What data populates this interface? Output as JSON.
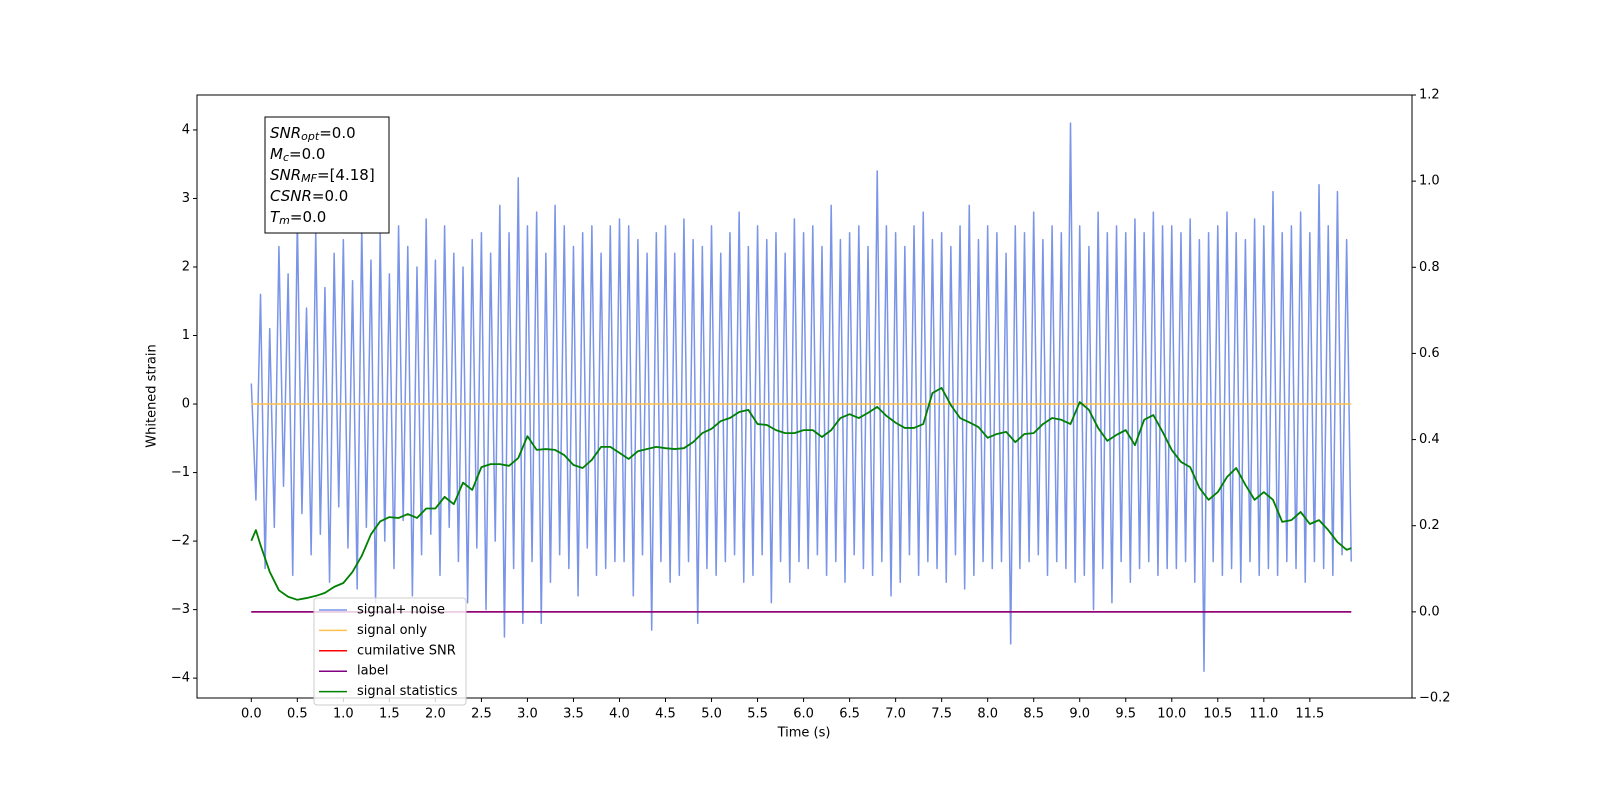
{
  "chart_data": {
    "type": "line",
    "xlabel": "Time (s)",
    "ylabel": "Whitened strain",
    "xlim": [
      -0.59,
      12.61
    ],
    "ylim": [
      -4.29,
      4.51
    ],
    "y2lim": [
      -0.2,
      1.2
    ],
    "xticks": [
      {
        "value": 0,
        "label": "0.0"
      },
      0.5,
      {
        "value": 1,
        "label": "1.0"
      },
      1.5,
      {
        "value": 2,
        "label": "2.0"
      },
      2.5,
      {
        "value": 3,
        "label": "3.0"
      },
      3.5,
      {
        "value": 4,
        "label": "4.0"
      },
      4.5,
      {
        "value": 5,
        "label": "5.0"
      },
      5.5,
      {
        "value": 6,
        "label": "6.0"
      },
      6.5,
      {
        "value": 7,
        "label": "7.0"
      },
      7.5,
      {
        "value": 8,
        "label": "8.0"
      },
      8.5,
      {
        "value": 9,
        "label": "9.0"
      },
      9.5,
      {
        "value": 10,
        "label": "10.0"
      },
      10.5,
      {
        "value": 11,
        "label": "11.0"
      },
      11.5
    ],
    "yticks": [
      {
        "value": -4,
        "label": "−4"
      },
      {
        "value": -3,
        "label": "−3"
      },
      {
        "value": -2,
        "label": "−2"
      },
      {
        "value": -1,
        "label": "−1"
      },
      0,
      1,
      2,
      3,
      4
    ],
    "y2ticks": [
      {
        "value": -0.2,
        "label": "−0.2"
      },
      {
        "value": 0,
        "label": "0.0"
      },
      0.2,
      0.4,
      0.6,
      0.8,
      {
        "value": 1,
        "label": "1.0"
      },
      1.2
    ],
    "grid": false,
    "legend": "lower left",
    "annotation_lines": [
      {
        "main": "SNR",
        "sub": "opt",
        "text": "=0.0"
      },
      {
        "main": "M",
        "sub": "c",
        "text": "=0.0"
      },
      {
        "main": "SNR",
        "sub": "MF",
        "text": "=[4.18]"
      },
      {
        "main": "CSNR",
        "sub": null,
        "text": "=0.0"
      },
      {
        "main": "T",
        "sub": "m",
        "text": "=0.0"
      }
    ],
    "series": [
      {
        "name": "signal+ noise",
        "color": "#7a94e8",
        "axis": "y",
        "x": [
          0,
          0.05,
          0.1,
          0.15,
          0.2,
          0.25,
          0.3,
          0.35,
          0.4,
          0.45,
          0.5,
          0.55,
          0.6,
          0.65,
          0.7,
          0.75,
          0.8,
          0.85,
          0.9,
          0.95,
          1,
          1.05,
          1.1,
          1.15,
          1.2,
          1.25,
          1.3,
          1.35,
          1.4,
          1.45,
          1.5,
          1.55,
          1.6,
          1.65,
          1.7,
          1.75,
          1.8,
          1.85,
          1.9,
          1.95,
          2,
          2.05,
          2.1,
          2.15,
          2.2,
          2.25,
          2.3,
          2.35,
          2.4,
          2.45,
          2.5,
          2.55,
          2.6,
          2.65,
          2.7,
          2.75,
          2.8,
          2.85,
          2.9,
          2.95,
          3,
          3.05,
          3.1,
          3.15,
          3.2,
          3.25,
          3.3,
          3.35,
          3.4,
          3.45,
          3.5,
          3.55,
          3.6,
          3.65,
          3.7,
          3.75,
          3.8,
          3.85,
          3.9,
          3.95,
          4,
          4.05,
          4.1,
          4.15,
          4.2,
          4.25,
          4.3,
          4.35,
          4.4,
          4.45,
          4.5,
          4.55,
          4.6,
          4.65,
          4.7,
          4.75,
          4.8,
          4.85,
          4.9,
          4.95,
          5,
          5.05,
          5.1,
          5.15,
          5.2,
          5.25,
          5.3,
          5.35,
          5.4,
          5.45,
          5.5,
          5.55,
          5.6,
          5.65,
          5.7,
          5.75,
          5.8,
          5.85,
          5.9,
          5.95,
          6,
          6.05,
          6.1,
          6.15,
          6.2,
          6.25,
          6.3,
          6.35,
          6.4,
          6.45,
          6.5,
          6.55,
          6.6,
          6.65,
          6.7,
          6.75,
          6.8,
          6.85,
          6.9,
          6.95,
          7,
          7.05,
          7.1,
          7.15,
          7.2,
          7.25,
          7.3,
          7.35,
          7.4,
          7.45,
          7.5,
          7.55,
          7.6,
          7.65,
          7.7,
          7.75,
          7.8,
          7.85,
          7.9,
          7.95,
          8,
          8.05,
          8.1,
          8.15,
          8.2,
          8.25,
          8.3,
          8.35,
          8.4,
          8.45,
          8.5,
          8.55,
          8.6,
          8.65,
          8.7,
          8.75,
          8.8,
          8.85,
          8.9,
          8.95,
          9,
          9.05,
          9.1,
          9.15,
          9.2,
          9.25,
          9.3,
          9.35,
          9.4,
          9.45,
          9.5,
          9.55,
          9.6,
          9.65,
          9.7,
          9.75,
          9.8,
          9.85,
          9.9,
          9.95,
          10,
          10.05,
          10.1,
          10.15,
          10.2,
          10.25,
          10.3,
          10.35,
          10.4,
          10.45,
          10.5,
          10.55,
          10.6,
          10.65,
          10.7,
          10.75,
          10.8,
          10.85,
          10.9,
          10.95,
          11,
          11.05,
          11.1,
          11.15,
          11.2,
          11.25,
          11.3,
          11.35,
          11.4,
          11.45,
          11.5,
          11.55,
          11.6,
          11.65,
          11.7,
          11.75,
          11.8,
          11.85,
          11.9,
          11.95
        ],
        "values": [
          0.3,
          -1.4,
          1.6,
          -2.4,
          1.1,
          -1.8,
          2.3,
          -1.2,
          1.9,
          -2.5,
          2.7,
          -1.6,
          1.4,
          -2.2,
          2.5,
          -1.9,
          1.7,
          -2.6,
          2.2,
          -1.5,
          2.4,
          -2.1,
          1.8,
          -2.7,
          2.6,
          -1.8,
          2.1,
          -2.9,
          2.5,
          -2.0,
          1.9,
          -2.4,
          2.6,
          -1.7,
          2.3,
          -2.8,
          2.0,
          -2.2,
          2.7,
          -1.9,
          2.1,
          -2.5,
          2.6,
          -1.8,
          2.2,
          -2.3,
          2.0,
          -2.9,
          2.4,
          -2.1,
          2.5,
          -3.0,
          2.2,
          -2.0,
          2.9,
          -3.4,
          2.5,
          -2.4,
          3.3,
          -3.2,
          2.6,
          -2.3,
          2.8,
          -3.2,
          2.2,
          -2.6,
          2.9,
          -2.2,
          2.6,
          -2.4,
          2.3,
          -2.8,
          2.5,
          -2.1,
          2.6,
          -2.5,
          2.2,
          -2.4,
          2.6,
          -2.3,
          2.7,
          -2.3,
          2.6,
          -2.8,
          2.4,
          -2.2,
          2.2,
          -3.3,
          2.5,
          -2.3,
          2.6,
          -2.6,
          2.2,
          -2.5,
          2.7,
          -2.3,
          2.4,
          -3.2,
          2.3,
          -2.4,
          2.6,
          -2.5,
          2.2,
          -2.3,
          2.5,
          -2.2,
          2.8,
          -2.6,
          2.3,
          -2.5,
          2.6,
          -2.2,
          2.4,
          -2.9,
          2.5,
          -2.3,
          2.2,
          -2.6,
          2.7,
          -2.3,
          2.5,
          -2.4,
          2.6,
          -2.2,
          2.3,
          -2.5,
          2.9,
          -2.3,
          2.4,
          -2.6,
          2.5,
          -2.2,
          2.6,
          -2.4,
          2.3,
          -2.5,
          3.4,
          -2.3,
          2.6,
          -2.8,
          2.5,
          -2.6,
          2.3,
          -2.2,
          2.6,
          -2.5,
          2.8,
          -2.3,
          2.4,
          -2.4,
          2.5,
          -2.6,
          2.3,
          -2.2,
          2.6,
          -2.7,
          2.9,
          -2.5,
          2.4,
          -2.3,
          2.6,
          -2.4,
          2.5,
          -2.3,
          2.2,
          -3.5,
          2.6,
          -2.4,
          2.5,
          -2.3,
          2.8,
          -2.2,
          2.4,
          -2.5,
          2.6,
          -2.3,
          2.5,
          -2.4,
          4.1,
          -2.6,
          2.6,
          -2.5,
          2.3,
          -3.0,
          2.8,
          -2.4,
          2.5,
          -2.9,
          2.6,
          -2.3,
          2.5,
          -2.6,
          2.7,
          -2.4,
          2.5,
          -2.3,
          2.8,
          -2.5,
          2.6,
          -2.4,
          2.6,
          -2.4,
          2.5,
          -2.3,
          2.7,
          -2.6,
          2.4,
          -3.9,
          2.5,
          -2.3,
          2.6,
          -2.5,
          2.8,
          -2.4,
          2.5,
          -2.6,
          2.4,
          -2.3,
          2.7,
          -2.5,
          2.6,
          -2.4,
          3.1,
          -2.5,
          2.5,
          -2.3,
          2.6,
          -2.4,
          2.8,
          -2.6,
          2.5,
          -2.3,
          3.2,
          -2.4,
          2.6,
          -2.5,
          3.1,
          -2.2,
          2.4,
          -2.3
        ]
      },
      {
        "name": "signal only",
        "color": "#ffc04d",
        "axis": "y",
        "x": [
          0,
          11.95
        ],
        "values": [
          0,
          0
        ]
      },
      {
        "name": "cumilative SNR",
        "color": "#ff0000",
        "axis": "y2",
        "x": [
          0,
          11.95
        ],
        "values": [
          0,
          0
        ]
      },
      {
        "name": "label",
        "color": "#800080",
        "axis": "y2",
        "x": [
          0,
          11.95
        ],
        "values": [
          0,
          0
        ]
      },
      {
        "name": "signal statistics",
        "color": "#008000",
        "axis": "y2",
        "x": [
          0,
          0.05,
          0.1,
          0.2,
          0.3,
          0.4,
          0.5,
          0.6,
          0.7,
          0.8,
          0.9,
          1,
          1.1,
          1.2,
          1.3,
          1.4,
          1.5,
          1.6,
          1.7,
          1.8,
          1.9,
          2,
          2.1,
          2.2,
          2.3,
          2.4,
          2.5,
          2.6,
          2.7,
          2.8,
          2.9,
          3,
          3.1,
          3.2,
          3.3,
          3.4,
          3.5,
          3.6,
          3.7,
          3.8,
          3.9,
          4,
          4.1,
          4.2,
          4.3,
          4.4,
          4.5,
          4.6,
          4.7,
          4.8,
          4.9,
          5,
          5.1,
          5.2,
          5.3,
          5.4,
          5.5,
          5.6,
          5.7,
          5.8,
          5.9,
          6,
          6.1,
          6.2,
          6.3,
          6.4,
          6.5,
          6.6,
          6.7,
          6.8,
          6.9,
          7,
          7.1,
          7.2,
          7.3,
          7.4,
          7.5,
          7.6,
          7.7,
          7.8,
          7.9,
          8,
          8.1,
          8.2,
          8.3,
          8.4,
          8.5,
          8.6,
          8.7,
          8.8,
          8.9,
          9,
          9.1,
          9.2,
          9.3,
          9.4,
          9.5,
          9.6,
          9.7,
          9.8,
          9.9,
          10,
          10.1,
          10.2,
          10.3,
          10.4,
          10.5,
          10.6,
          10.7,
          10.8,
          10.9,
          11,
          11.1,
          11.2,
          11.3,
          11.4,
          11.5,
          11.6,
          11.7,
          11.8,
          11.9,
          11.95
        ],
        "values": [
          0.165,
          0.19,
          0.155,
          0.093,
          0.05,
          0.035,
          0.028,
          0.032,
          0.037,
          0.044,
          0.058,
          0.067,
          0.093,
          0.13,
          0.18,
          0.21,
          0.22,
          0.218,
          0.227,
          0.218,
          0.24,
          0.24,
          0.267,
          0.25,
          0.3,
          0.283,
          0.336,
          0.343,
          0.343,
          0.339,
          0.357,
          0.408,
          0.376,
          0.378,
          0.376,
          0.364,
          0.341,
          0.334,
          0.353,
          0.383,
          0.383,
          0.369,
          0.355,
          0.373,
          0.378,
          0.383,
          0.38,
          0.378,
          0.38,
          0.394,
          0.415,
          0.425,
          0.443,
          0.45,
          0.464,
          0.469,
          0.436,
          0.434,
          0.422,
          0.415,
          0.415,
          0.422,
          0.422,
          0.406,
          0.422,
          0.45,
          0.459,
          0.45,
          0.462,
          0.476,
          0.455,
          0.439,
          0.427,
          0.427,
          0.436,
          0.508,
          0.52,
          0.48,
          0.45,
          0.44,
          0.429,
          0.404,
          0.413,
          0.418,
          0.394,
          0.413,
          0.415,
          0.436,
          0.45,
          0.446,
          0.436,
          0.487,
          0.469,
          0.427,
          0.397,
          0.411,
          0.422,
          0.387,
          0.446,
          0.457,
          0.418,
          0.376,
          0.348,
          0.336,
          0.288,
          0.26,
          0.278,
          0.313,
          0.334,
          0.295,
          0.26,
          0.278,
          0.26,
          0.209,
          0.213,
          0.232,
          0.204,
          0.213,
          0.19,
          0.162,
          0.144,
          0.148
        ]
      }
    ]
  }
}
